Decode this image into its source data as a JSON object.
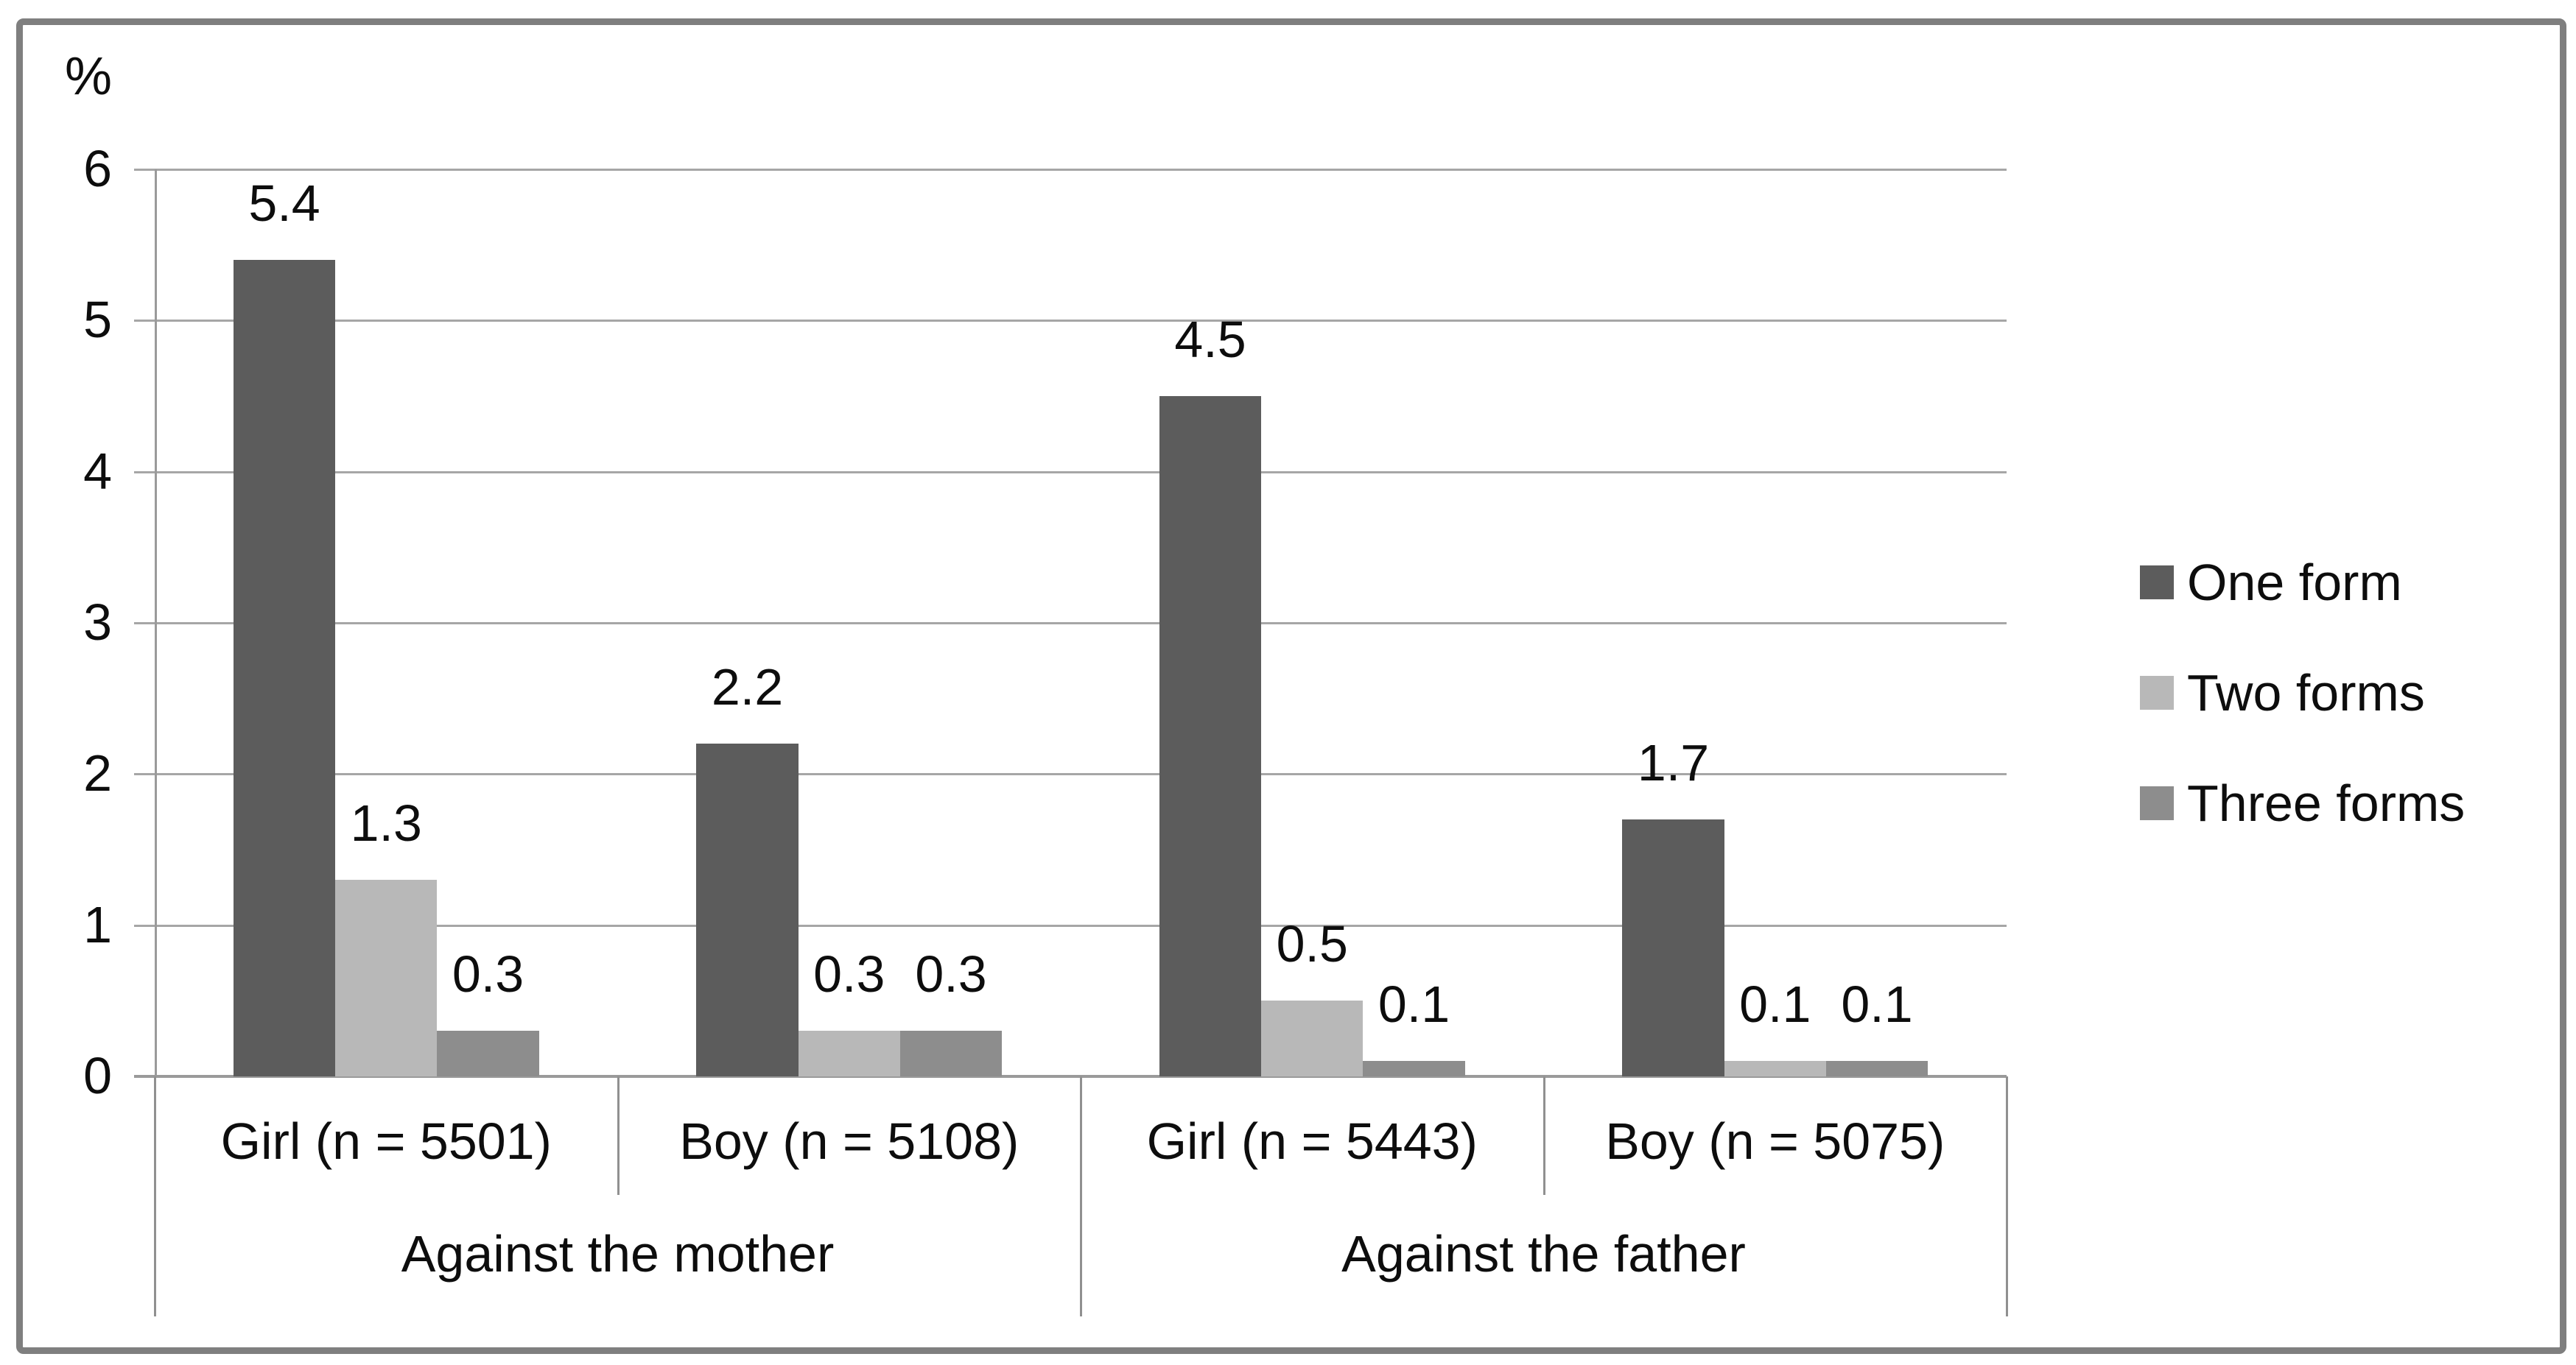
{
  "chart_data": {
    "type": "bar",
    "title": "",
    "ylabel": "%",
    "ylim": [
      0,
      6
    ],
    "yticks": [
      "0",
      "1",
      "2",
      "3",
      "4",
      "5",
      "6"
    ],
    "grid": true,
    "legend_position": "right",
    "value_labels_shown": true,
    "categories": [
      "Girl (n = 5501)",
      "Boy (n = 5108)",
      "Girl (n = 5443)",
      "Boy (n = 5075)"
    ],
    "category_groups": [
      {
        "label": "Against the mother",
        "span": 2
      },
      {
        "label": "Against the father",
        "span": 2
      }
    ],
    "series": [
      {
        "name": "One form",
        "color": "#5c5c5c",
        "values": [
          5.4,
          2.2,
          4.5,
          1.7
        ]
      },
      {
        "name": "Two forms",
        "color": "#b8b8b8",
        "values": [
          1.3,
          0.3,
          0.5,
          0.1
        ]
      },
      {
        "name": "Three forms",
        "color": "#8d8d8d",
        "values": [
          0.3,
          0.3,
          0.1,
          0.1
        ]
      }
    ]
  },
  "colors": {
    "background": "#ffffff",
    "frame_border": "#7f7f7f",
    "gridline": "#a6a6a6",
    "axis_line": "#9a9a9a",
    "category_divider": "#909090",
    "text": "#0d0d0d"
  }
}
